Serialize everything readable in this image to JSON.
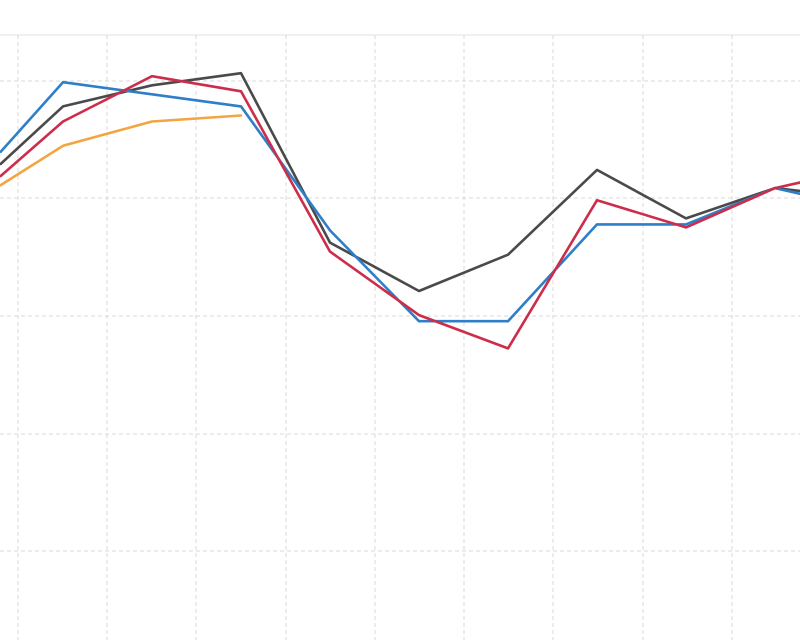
{
  "chart_data": {
    "type": "line",
    "title": "",
    "xlabel": "",
    "ylabel": "",
    "x": [
      0,
      1,
      2,
      3,
      4,
      5,
      6,
      7,
      8,
      9
    ],
    "xlim": [
      -0.7,
      8.3
    ],
    "ylim": [
      0,
      100
    ],
    "ylim_note_hidden": false,
    "grid": true,
    "legend": "none",
    "series": [
      {
        "color": "#4a4a4a",
        "points": [
          [
            -0.7,
            82
          ],
          [
            0,
            91.5
          ],
          [
            1,
            95
          ],
          [
            2,
            97
          ],
          [
            3,
            69
          ],
          [
            4,
            61
          ],
          [
            5,
            67
          ],
          [
            6,
            81
          ],
          [
            7,
            73
          ],
          [
            8,
            78
          ],
          [
            8.3,
            77.5
          ]
        ]
      },
      {
        "color": "#2f7fc8",
        "points": [
          [
            -0.7,
            84
          ],
          [
            0,
            95.5
          ],
          [
            1,
            93.5
          ],
          [
            2,
            91.5
          ],
          [
            3,
            71
          ],
          [
            4,
            56
          ],
          [
            5,
            56
          ],
          [
            6,
            72
          ],
          [
            7,
            72
          ],
          [
            8,
            78
          ],
          [
            8.3,
            77
          ]
        ]
      },
      {
        "color": "#cc2d4a",
        "points": [
          [
            -0.7,
            80
          ],
          [
            0,
            89
          ],
          [
            1,
            96.5
          ],
          [
            2,
            94
          ],
          [
            3,
            67.5
          ],
          [
            4,
            57
          ],
          [
            5,
            51.5
          ],
          [
            6,
            76
          ],
          [
            7,
            71.5
          ],
          [
            8,
            78
          ],
          [
            8.3,
            79
          ]
        ]
      },
      {
        "color": "#f2a540",
        "points": [
          [
            -0.7,
            78.5
          ],
          [
            0,
            85
          ],
          [
            1,
            89
          ],
          [
            2,
            90
          ]
        ]
      }
    ]
  }
}
